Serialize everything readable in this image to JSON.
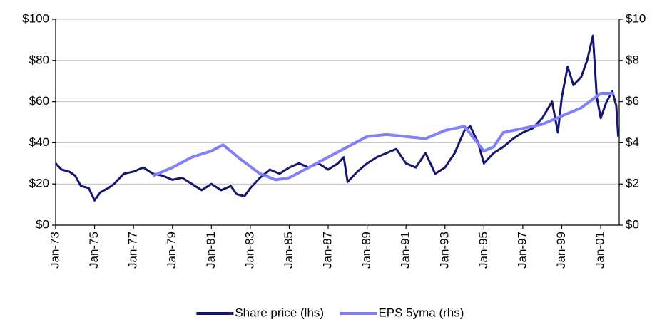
{
  "chart_data": {
    "type": "line",
    "xlim": [
      1973,
      2001.95
    ],
    "xticks": [
      {
        "value": 1973,
        "label": "Jan-73"
      },
      {
        "value": 1975,
        "label": "Jan-75"
      },
      {
        "value": 1977,
        "label": "Jan-77"
      },
      {
        "value": 1979,
        "label": "Jan-79"
      },
      {
        "value": 1981,
        "label": "Jan-81"
      },
      {
        "value": 1983,
        "label": "Jan-83"
      },
      {
        "value": 1985,
        "label": "Jan-85"
      },
      {
        "value": 1987,
        "label": "Jan-87"
      },
      {
        "value": 1989,
        "label": "Jan-89"
      },
      {
        "value": 1991,
        "label": "Jan-91"
      },
      {
        "value": 1993,
        "label": "Jan-93"
      },
      {
        "value": 1995,
        "label": "Jan-95"
      },
      {
        "value": 1997,
        "label": "Jan-97"
      },
      {
        "value": 1999,
        "label": "Jan-99"
      },
      {
        "value": 2001,
        "label": "Jan-01"
      }
    ],
    "ylim": [
      0,
      100
    ],
    "yticks": [
      {
        "value": 0,
        "label": "$0"
      },
      {
        "value": 20,
        "label": "$20"
      },
      {
        "value": 40,
        "label": "$40"
      },
      {
        "value": 60,
        "label": "$60"
      },
      {
        "value": 80,
        "label": "$80"
      },
      {
        "value": 100,
        "label": "$100"
      }
    ],
    "y2lim": [
      0,
      10
    ],
    "y2ticks": [
      {
        "value": 0,
        "label": "$0"
      },
      {
        "value": 2,
        "label": "$2"
      },
      {
        "value": 4,
        "label": "$4"
      },
      {
        "value": 6,
        "label": "$6"
      },
      {
        "value": 8,
        "label": "$8"
      },
      {
        "value": 10,
        "label": "$10"
      }
    ],
    "grid": true,
    "legend": "bottom",
    "series": [
      {
        "name": "Share price (lhs)",
        "color": "#161670",
        "x": [
          1973.0,
          1973.3,
          1973.7,
          1974.0,
          1974.3,
          1974.7,
          1975.0,
          1975.3,
          1975.7,
          1976.0,
          1976.5,
          1977.0,
          1977.5,
          1978.0,
          1978.5,
          1979.0,
          1979.5,
          1980.0,
          1980.5,
          1981.0,
          1981.5,
          1982.0,
          1982.3,
          1982.7,
          1983.0,
          1983.5,
          1984.0,
          1984.5,
          1985.0,
          1985.5,
          1986.0,
          1986.5,
          1987.0,
          1987.5,
          1987.8,
          1988.0,
          1988.5,
          1989.0,
          1989.5,
          1990.0,
          1990.5,
          1991.0,
          1991.5,
          1992.0,
          1992.5,
          1993.0,
          1993.5,
          1994.0,
          1994.3,
          1994.7,
          1995.0,
          1995.5,
          1996.0,
          1996.5,
          1997.0,
          1997.5,
          1998.0,
          1998.5,
          1998.8,
          1999.0,
          1999.3,
          1999.6,
          2000.0,
          2000.3,
          2000.6,
          2000.8,
          2001.0,
          2001.3,
          2001.6,
          2001.8,
          2001.9
        ],
        "values": [
          30,
          27,
          26,
          24,
          19,
          18,
          12,
          16,
          18,
          20,
          25,
          26,
          28,
          25,
          24,
          22,
          23,
          20,
          17,
          20,
          17,
          19,
          15,
          14,
          18,
          23,
          27,
          25,
          28,
          30,
          28,
          30,
          27,
          30,
          33,
          21,
          26,
          30,
          33,
          35,
          37,
          30,
          28,
          35,
          25,
          28,
          35,
          46,
          48,
          40,
          30,
          35,
          38,
          42,
          45,
          47,
          52,
          60,
          45,
          62,
          77,
          68,
          72,
          80,
          92,
          62,
          52,
          60,
          65,
          58,
          43
        ]
      },
      {
        "name": "EPS 5yma (rhs)",
        "color": "#8080ff",
        "axis": "y2",
        "x": [
          1978.0,
          1979.0,
          1980.0,
          1981.0,
          1981.6,
          1982.5,
          1983.5,
          1984.3,
          1985.0,
          1986.0,
          1987.0,
          1988.0,
          1989.0,
          1990.0,
          1991.0,
          1992.0,
          1993.0,
          1994.0,
          1994.5,
          1995.0,
          1995.5,
          1996.0,
          1997.0,
          1998.0,
          1999.0,
          2000.0,
          2001.0,
          2001.7
        ],
        "values": [
          2.4,
          2.8,
          3.3,
          3.6,
          3.9,
          3.2,
          2.5,
          2.2,
          2.3,
          2.8,
          3.3,
          3.8,
          4.3,
          4.4,
          4.3,
          4.2,
          4.6,
          4.8,
          4.2,
          3.6,
          3.8,
          4.5,
          4.7,
          4.9,
          5.3,
          5.7,
          6.4,
          6.4
        ]
      }
    ]
  }
}
